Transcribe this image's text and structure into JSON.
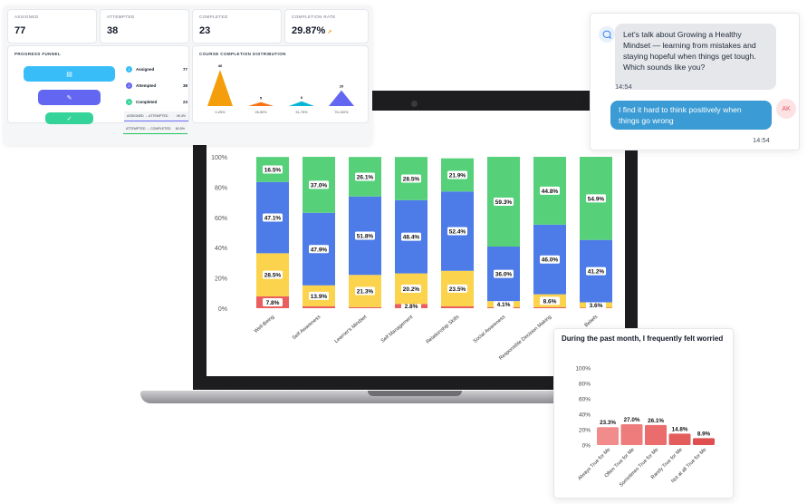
{
  "dashboard": {
    "stats": [
      {
        "label": "ASSIGNED",
        "value": "77"
      },
      {
        "label": "ATTEMPTED",
        "value": "38"
      },
      {
        "label": "COMPLETED",
        "value": "23"
      },
      {
        "label": "COMPLETION RATE",
        "value": "29.87%",
        "trend_icon": "trend-up-icon"
      }
    ],
    "funnel": {
      "title": "PROGRESS FUNNEL",
      "rows": [
        {
          "num": "1",
          "name": "Assigned",
          "count": "77",
          "color": "#38bdf8",
          "icon": "assignment-icon"
        },
        {
          "num": "2",
          "name": "Attempted",
          "count": "38",
          "color": "#6366f1",
          "icon": "edit-icon"
        },
        {
          "num": "3",
          "name": "Completed",
          "count": "23",
          "color": "#34d399",
          "icon": "check-icon"
        }
      ],
      "ratios": [
        {
          "label": "ASSIGNED → ATTEMPTED",
          "value": "49.4%",
          "color": "#6366f1"
        },
        {
          "label": "ATTEMPTED → COMPLETED",
          "value": "60.5%",
          "color": "#22c55e"
        }
      ]
    },
    "distribution": {
      "title": "COURSE COMPLETION DISTRIBUTION",
      "chart_data": {
        "type": "area",
        "values": [
          46,
          5,
          6,
          20
        ],
        "value_labels": [
          "46",
          "5",
          "6",
          "20"
        ],
        "x_labels": [
          "0-25%",
          "26-50%",
          "51-75%",
          "76-100%"
        ],
        "colors": [
          "#f59e0b",
          "#f97316",
          "#06b6d4",
          "#6366f1"
        ]
      }
    }
  },
  "chat": {
    "bot_message": "Let's talk about Growing a Healthy Mindset — learning from mistakes and staying hopeful when things get tough. Which sounds like you?",
    "bot_time": "14:54",
    "user_message": "I find it hard to think positively when things go wrong",
    "user_initials": "AK",
    "user_time": "14:54",
    "bot_icon": "chat-bubble-icon"
  },
  "stacked_chart": {
    "chart_data": {
      "type": "bar",
      "stacked": true,
      "ylim": [
        0,
        100
      ],
      "y_ticks": [
        "0%",
        "20%",
        "40%",
        "60%",
        "80%",
        "100%"
      ],
      "categories": [
        "Well-Being",
        "Self Awareness",
        "Learner's Mindset",
        "Self Management",
        "Relationship Skills",
        "Social Awareness",
        "Responsible Decision Making",
        "Beliefs"
      ],
      "series": [
        {
          "color": "#e95f5f",
          "values": [
            7.8,
            1.2,
            0.7,
            2.8,
            1.2,
            0.6,
            0.6,
            0.3
          ],
          "labels": [
            "7.8%",
            "",
            "",
            "2.8%",
            "",
            "",
            "",
            ""
          ]
        },
        {
          "color": "#fcd34d",
          "values": [
            28.5,
            13.9,
            21.3,
            20.2,
            23.5,
            4.1,
            8.6,
            3.6
          ],
          "labels": [
            "28.5%",
            "13.9%",
            "21.3%",
            "20.2%",
            "23.5%",
            "4.1%",
            "8.6%",
            "3.6%"
          ]
        },
        {
          "color": "#4d7be8",
          "values": [
            47.1,
            47.9,
            51.8,
            48.4,
            52.4,
            36.0,
            46.0,
            41.2
          ],
          "labels": [
            "47.1%",
            "47.9%",
            "51.8%",
            "48.4%",
            "52.4%",
            "36.0%",
            "46.0%",
            "41.2%"
          ]
        },
        {
          "color": "#56d17a",
          "values": [
            16.5,
            37.0,
            26.1,
            28.5,
            21.9,
            59.3,
            44.8,
            54.9
          ],
          "labels": [
            "16.5%",
            "37.0%",
            "26.1%",
            "28.5%",
            "21.9%",
            "59.3%",
            "44.8%",
            "54.9%"
          ]
        }
      ]
    }
  },
  "worried": {
    "title": "During the past month, I frequently felt worried",
    "chart_data": {
      "type": "bar",
      "ylim": [
        0,
        100
      ],
      "y_ticks": [
        "0%",
        "20%",
        "40%",
        "60%",
        "80%",
        "100%"
      ],
      "categories": [
        "Always True for Me",
        "Often True for Me",
        "Sometimes True for Me",
        "Rarely True for Me",
        "Not at all True for Me"
      ],
      "values": [
        23.3,
        27.0,
        26.1,
        14.8,
        8.9
      ],
      "labels": [
        "23.3%",
        "27.0%",
        "26.1%",
        "14.8%",
        "8.9%"
      ],
      "colors": [
        "#f28b8b",
        "#ef7c7c",
        "#ea6c6c",
        "#e45d5d",
        "#df4f4f"
      ]
    }
  }
}
